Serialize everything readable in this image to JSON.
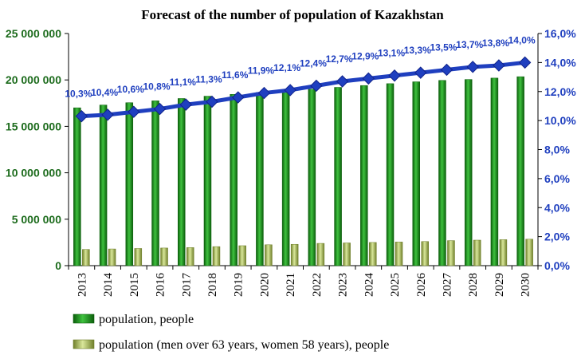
{
  "colors": {
    "population": "#1e9a1e",
    "population_dark": "#0b5e0b",
    "retirees": "#b7c96a",
    "retirees_dark": "#6f7f2a",
    "share_line": "#1f3fbf",
    "left_axis_text": "#1c6b1c",
    "right_axis_text": "#1f3fbf"
  },
  "chart_data": {
    "type": "bar",
    "title": "Forecast of the number of population of Kazakhstan",
    "categories": [
      "2013",
      "2014",
      "2015",
      "2016",
      "2017",
      "2018",
      "2019",
      "2020",
      "2021",
      "2022",
      "2023",
      "2024",
      "2025",
      "2026",
      "2027",
      "2028",
      "2029",
      "2030"
    ],
    "series": [
      {
        "name": "population, people",
        "type": "bar",
        "axis": "left",
        "values": [
          17000000,
          17300000,
          17550000,
          17750000,
          18000000,
          18250000,
          18450000,
          18650000,
          18850000,
          19000000,
          19200000,
          19400000,
          19600000,
          19800000,
          19950000,
          20050000,
          20200000,
          20350000
        ]
      },
      {
        "name": "population (men over 63 years, women 58 years), people",
        "type": "bar",
        "axis": "left",
        "values": [
          1750000,
          1800000,
          1850000,
          1900000,
          1950000,
          2050000,
          2150000,
          2250000,
          2300000,
          2400000,
          2450000,
          2500000,
          2550000,
          2600000,
          2700000,
          2750000,
          2800000,
          2850000
        ]
      },
      {
        "type": "line",
        "axis": "right",
        "values": [
          10.3,
          10.4,
          10.6,
          10.8,
          11.1,
          11.3,
          11.6,
          11.9,
          12.1,
          12.4,
          12.7,
          12.9,
          13.1,
          13.3,
          13.5,
          13.7,
          13.8,
          14.0
        ],
        "labels": [
          "10,3%",
          "10,4%",
          "10,6%",
          "10,8%",
          "11,1%",
          "11,3%",
          "11,6%",
          "11,9%",
          "12,1%",
          "12,4%",
          "12,7%",
          "12,9%",
          "13,1%",
          "13,3%",
          "13,5%",
          "13,7%",
          "13,8%",
          "14,0%"
        ]
      }
    ],
    "left_axis": {
      "ylim": [
        0,
        25000000
      ],
      "ticks": [
        0,
        5000000,
        10000000,
        15000000,
        20000000,
        25000000
      ],
      "tick_labels": [
        "0",
        "5 000 000",
        "10 000 000",
        "15 000 000",
        "20 000 000",
        "25 000 000"
      ]
    },
    "right_axis": {
      "ylim": [
        0,
        16
      ],
      "ticks": [
        0,
        2,
        4,
        6,
        8,
        10,
        12,
        14,
        16
      ],
      "tick_labels": [
        "0,0%",
        "2,0%",
        "4,0%",
        "6,0%",
        "8,0%",
        "10,0%",
        "12,0%",
        "14,0%",
        "16,0%"
      ]
    },
    "grid": false,
    "legend": {
      "placement": "bottom-left",
      "entries": [
        "population, people",
        "population (men over 63 years, women 58 years), people"
      ]
    }
  }
}
